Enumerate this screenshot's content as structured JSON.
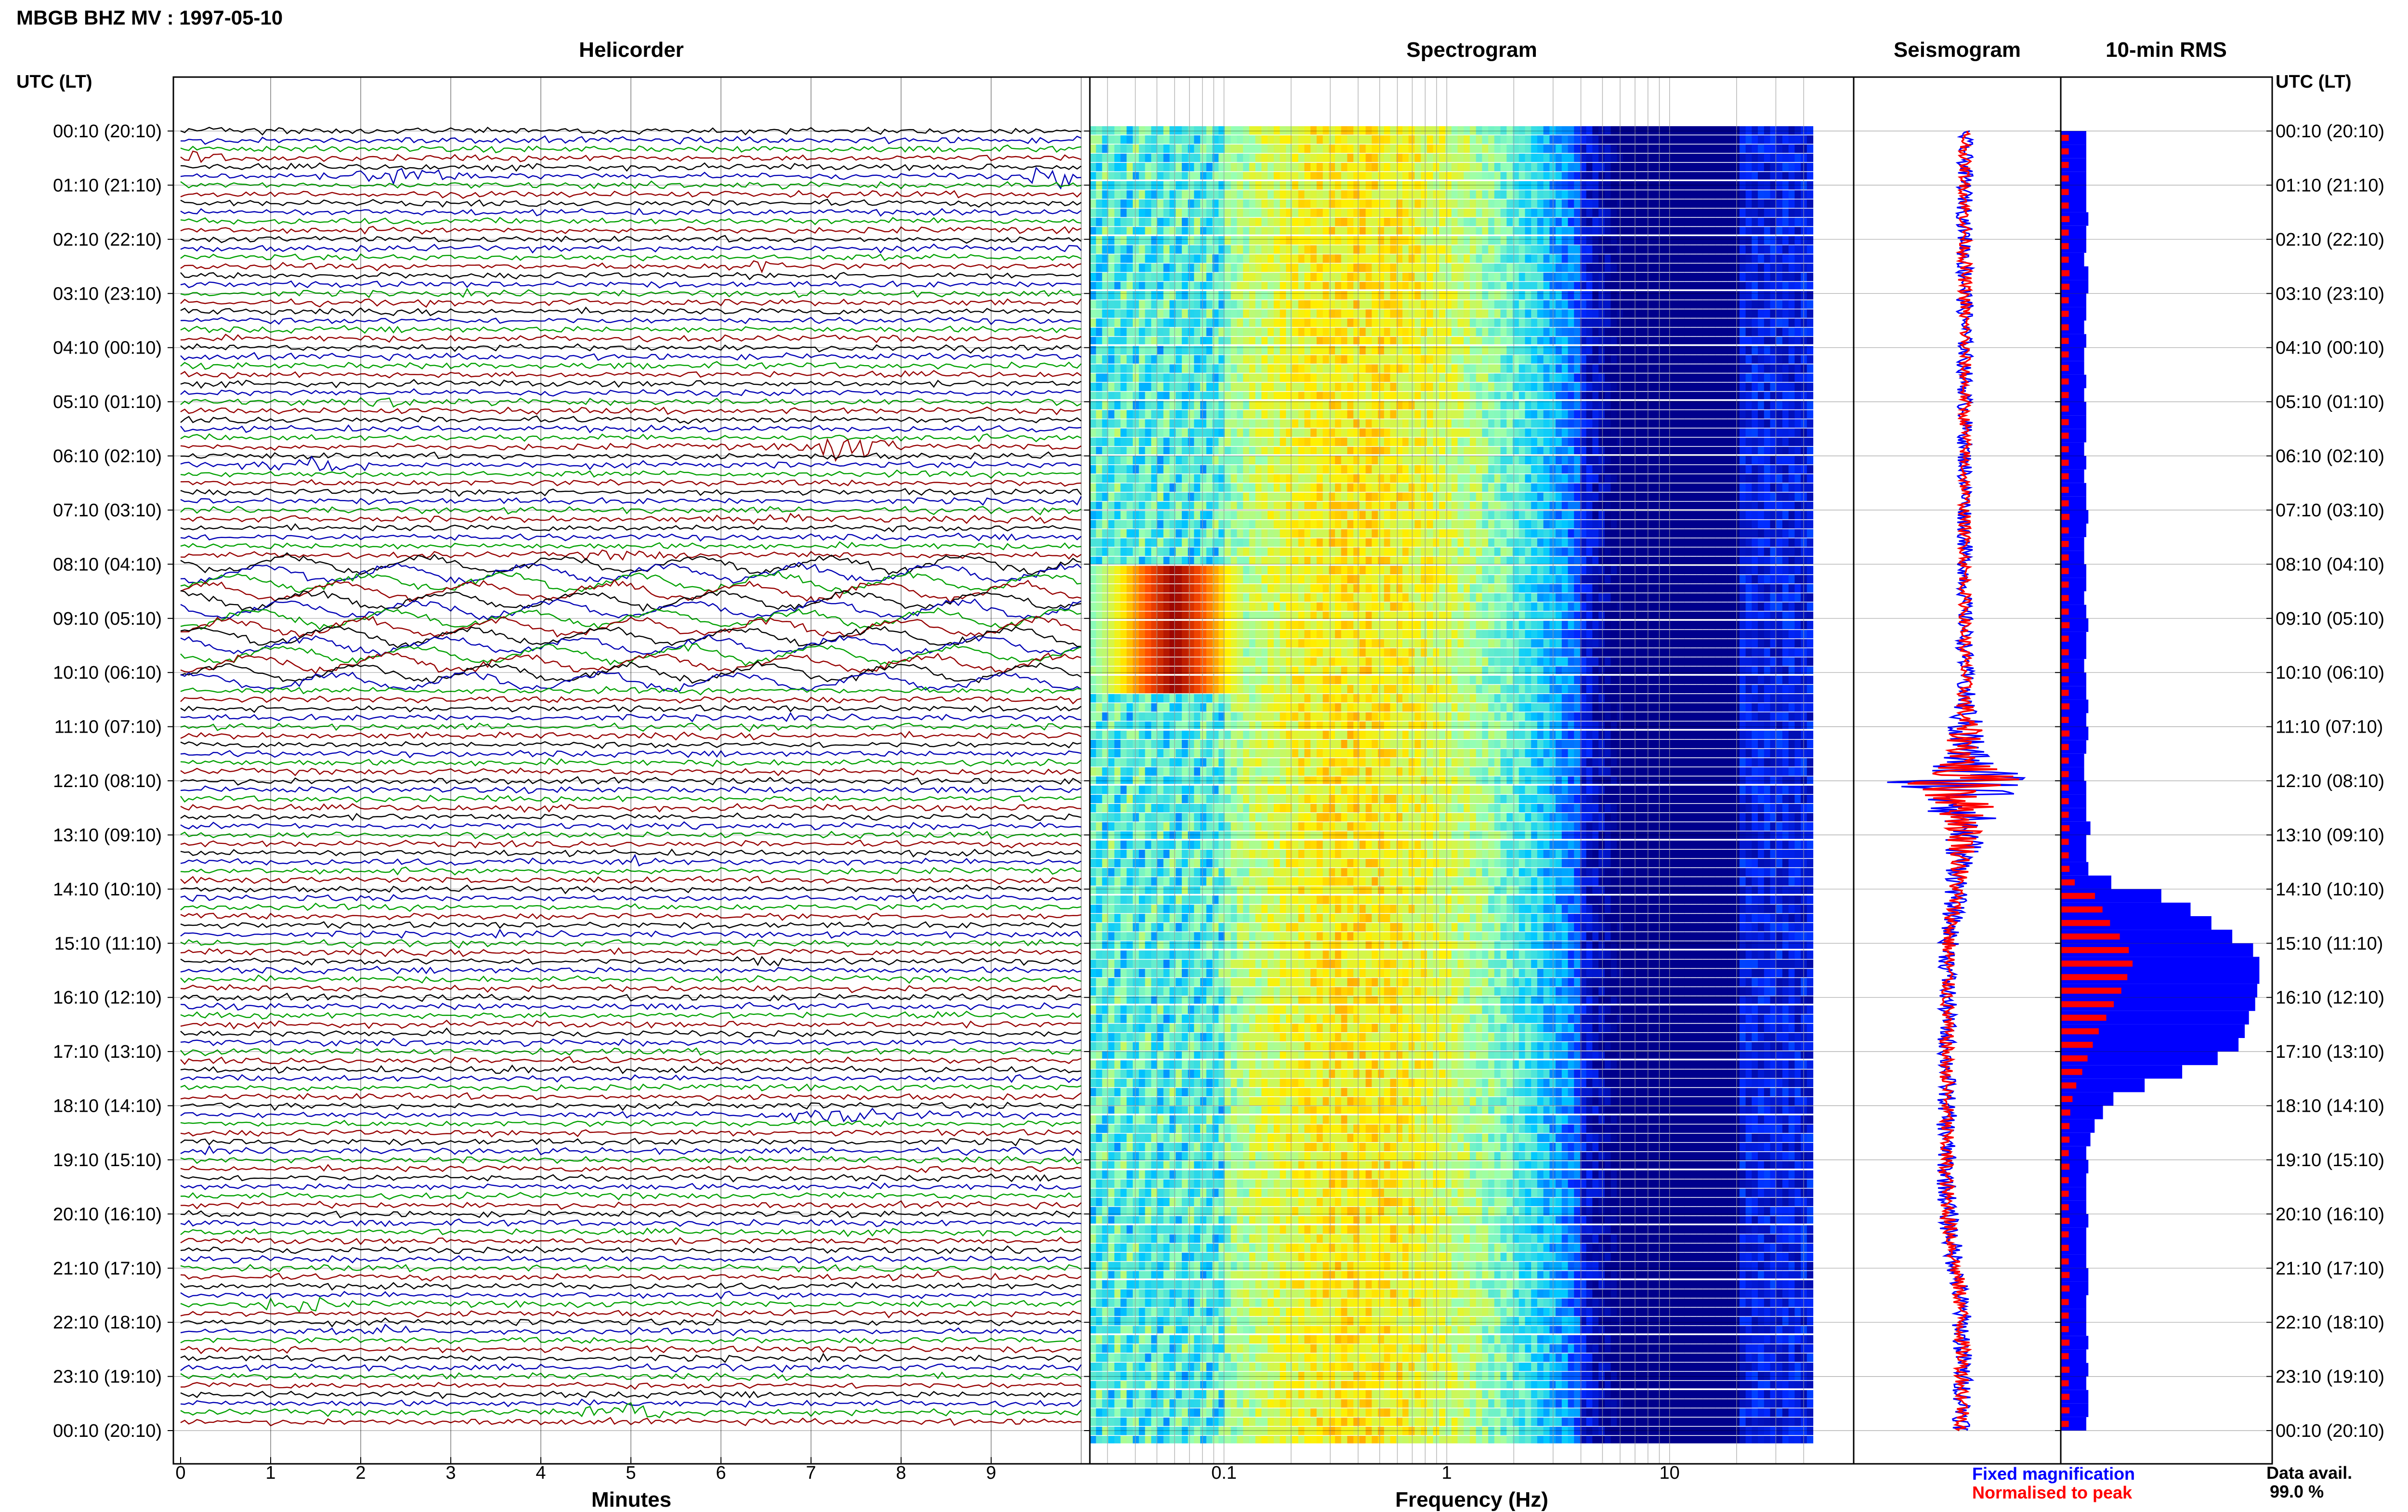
{
  "page": {
    "title": "MBGB BHZ MV : 1997-05-10",
    "time_axis_header": "UTC (LT)",
    "time_labels": [
      "00:10 (20:10)",
      "01:10 (21:10)",
      "02:10 (22:10)",
      "03:10 (23:10)",
      "04:10 (00:10)",
      "05:10 (01:10)",
      "06:10 (02:10)",
      "07:10 (03:10)",
      "08:10 (04:10)",
      "09:10 (05:10)",
      "10:10 (06:10)",
      "11:10 (07:10)",
      "12:10 (08:10)",
      "13:10 (09:10)",
      "14:10 (10:10)",
      "15:10 (11:10)",
      "16:10 (12:10)",
      "17:10 (13:10)",
      "18:10 (14:10)",
      "19:10 (15:10)",
      "20:10 (16:10)",
      "21:10 (17:10)",
      "22:10 (18:10)",
      "23:10 (19:10)",
      "00:10 (20:10)"
    ],
    "legend": {
      "fixed": "Fixed magnification",
      "normalised": "Normalised to peak",
      "fixed_color": "#0000ff",
      "normalised_color": "#ff0000"
    },
    "data_avail_label": "Data avail.",
    "data_avail_value": "99.0 %"
  },
  "chart_data": [
    {
      "type": "line",
      "title": "Helicorder",
      "xlabel": "Minutes",
      "xticks": [
        "0",
        "1",
        "2",
        "3",
        "4",
        "5",
        "6",
        "7",
        "8",
        "9"
      ],
      "xlim": [
        0,
        10
      ],
      "rows": 144,
      "row_colors": [
        "#000000",
        "#0000b4",
        "#00a000",
        "#960000"
      ],
      "events": [
        {
          "hour": 0.5,
          "minute": 0.2,
          "amp": 3,
          "dur": 0.5
        },
        {
          "hour": 0.8,
          "minute": 2.5,
          "amp": 4,
          "dur": 1.0
        },
        {
          "hour": 0.8,
          "minute": 9.7,
          "amp": 5,
          "dur": 0.5
        },
        {
          "hour": 2.5,
          "minute": 6.4,
          "amp": 3,
          "dur": 0.6
        },
        {
          "hour": 4.0,
          "minute": 8.7,
          "amp": 2.5,
          "dur": 0.5
        },
        {
          "hour": 5.0,
          "minute": 2.4,
          "amp": 2.5,
          "dur": 0.6
        },
        {
          "hour": 5.9,
          "minute": 7.4,
          "amp": 5,
          "dur": 0.9
        },
        {
          "hour": 6.1,
          "minute": 1.5,
          "amp": 3.5,
          "dur": 1.0
        },
        {
          "hour": 7.1,
          "minute": 6.5,
          "amp": 2,
          "dur": 1.2
        },
        {
          "hour": 7.9,
          "minute": 5.0,
          "amp": 2,
          "dur": 1.5
        },
        {
          "hour": 13.5,
          "minute": 5.1,
          "amp": 2.5,
          "dur": 0.6
        },
        {
          "hour": 15.3,
          "minute": 6.4,
          "amp": 3,
          "dur": 0.5
        },
        {
          "hour": 16.6,
          "minute": 2.8,
          "amp": 2,
          "dur": 0.5
        },
        {
          "hour": 17.4,
          "minute": 3.8,
          "amp": 2,
          "dur": 1.2
        },
        {
          "hour": 18.2,
          "minute": 7.3,
          "amp": 3.5,
          "dur": 1.4
        },
        {
          "hour": 21.1,
          "minute": 8.5,
          "amp": 2,
          "dur": 0.8
        },
        {
          "hour": 21.7,
          "minute": 1.3,
          "amp": 3.5,
          "dur": 0.8
        },
        {
          "hour": 22.2,
          "minute": 2.3,
          "amp": 2.5,
          "dur": 0.6
        },
        {
          "hour": 23.6,
          "minute": 4.9,
          "amp": 5,
          "dur": 0.7
        }
      ],
      "high_noise_hours": [
        8.0,
        10.3
      ]
    },
    {
      "type": "heatmap",
      "title": "Spectrogram",
      "xlabel": "Frequency (Hz)",
      "xscale": "log",
      "xticks": [
        "0.1",
        "1",
        "10"
      ],
      "xlim": [
        0.025,
        50
      ],
      "color_map": [
        "#00008c",
        "#0028ff",
        "#00c8ff",
        "#96ffb4",
        "#fff000",
        "#ff5000",
        "#960000"
      ],
      "peak_frequency_hz": 0.4,
      "storm_hours": [
        8.0,
        10.3
      ],
      "storm_frequency_hz": 0.06
    },
    {
      "type": "line",
      "title": "Seismogram",
      "series": [
        {
          "name": "Fixed magnification",
          "color": "#0000ff"
        },
        {
          "name": "Normalised to peak",
          "color": "#ff0000"
        }
      ],
      "envelope": [
        1,
        1,
        1,
        1,
        1,
        1,
        1.1,
        1,
        1,
        1.1,
        1.2,
        1.2,
        1.1,
        1.1,
        1.1,
        1,
        1,
        1.1,
        1,
        1,
        1,
        1,
        1,
        1,
        1,
        1,
        1,
        1,
        1,
        1,
        1,
        1,
        1,
        1,
        1,
        1,
        1,
        1.1,
        1.1,
        1.1,
        1.2,
        1.3,
        1.6,
        2.2,
        3.2,
        3.2,
        3.5,
        9,
        11,
        6,
        4.5,
        3.5,
        3,
        2,
        1.8,
        1.6,
        1.5,
        1.4,
        1.3,
        1.3,
        1.3,
        1.3,
        1.2,
        1.2,
        1.2,
        1.2,
        1.2,
        1.2,
        1.2,
        1.2,
        1.2,
        1.2,
        1.3,
        1.3,
        1.3,
        1.3,
        1.3,
        1.3,
        1.3,
        1.3,
        1.3,
        1.3,
        1.3,
        1.3,
        1.3,
        1.3,
        1.3,
        1.3,
        1.3,
        1.3,
        1.3,
        1.3,
        1.3,
        1.3,
        1.3,
        1.3
      ],
      "drift": [
        0,
        0,
        0,
        0,
        0,
        0,
        0,
        0,
        0,
        0,
        0,
        0,
        0,
        0,
        0,
        0,
        0,
        0,
        0,
        0,
        0,
        0,
        0,
        0,
        0,
        0,
        0,
        0,
        0,
        0,
        0,
        0,
        0,
        0,
        0,
        0,
        0,
        0,
        0,
        0,
        0,
        0,
        0,
        0,
        0,
        0,
        0,
        0,
        0,
        0,
        0,
        0,
        -0.2,
        -0.5,
        -1,
        -1.4,
        -1.8,
        -2.2,
        -2.6,
        -3,
        -3.2,
        -3.2,
        -3.3,
        -3.3,
        -3.4,
        -3.4,
        -3.5,
        -3.5,
        -3.5,
        -3.5,
        -3.5,
        -3.5,
        -3.5,
        -3.6,
        -3.6,
        -3.6,
        -3.6,
        -3.5,
        -3.4,
        -3.2,
        -3,
        -2.6,
        -2.2,
        -1.8,
        -1.4,
        -1,
        -0.8,
        -0.6,
        -0.5,
        -0.5,
        -0.5,
        -0.4,
        -0.4,
        -0.4,
        -0.4,
        -0.4
      ]
    },
    {
      "type": "bar",
      "title": "10-min RMS",
      "orientation": "horizontal",
      "series": [
        {
          "name": "Fixed magnification",
          "color": "#0000ff",
          "values": [
            12,
            12,
            12,
            12,
            12,
            12,
            13,
            12,
            12,
            11,
            13,
            13,
            12,
            12,
            11,
            12,
            11,
            11,
            12,
            11,
            12,
            12,
            12,
            11,
            12,
            11,
            12,
            12,
            13,
            12,
            11,
            11,
            12,
            12,
            11,
            12,
            13,
            12,
            12,
            11,
            12,
            12,
            13,
            12,
            13,
            12,
            11,
            11,
            12,
            12,
            12,
            14,
            12,
            12,
            13,
            24,
            48,
            62,
            72,
            82,
            92,
            95,
            95,
            94,
            93,
            90,
            88,
            85,
            75,
            58,
            40,
            25,
            20,
            16,
            14,
            12,
            13,
            12,
            12,
            12,
            13,
            12,
            12,
            12,
            13,
            13,
            12,
            12,
            12,
            13,
            12,
            13,
            12,
            13,
            13,
            12
          ]
        },
        {
          "name": "Normalised to peak",
          "color": "#ff0000",
          "values": [
            10,
            10,
            10,
            10,
            10,
            10,
            11,
            10,
            10,
            10,
            11,
            11,
            10,
            10,
            10,
            10,
            10,
            10,
            10,
            10,
            10,
            10,
            10,
            10,
            10,
            10,
            10,
            10,
            11,
            10,
            10,
            10,
            10,
            10,
            10,
            10,
            11,
            10,
            10,
            10,
            10,
            10,
            11,
            10,
            11,
            10,
            10,
            10,
            10,
            10,
            10,
            11,
            10,
            10,
            11,
            18,
            45,
            55,
            65,
            78,
            90,
            95,
            88,
            80,
            70,
            60,
            50,
            42,
            35,
            28,
            20,
            15,
            12,
            11,
            11,
            10,
            11,
            10,
            10,
            10,
            11,
            10,
            10,
            10,
            11,
            11,
            10,
            10,
            10,
            11,
            10,
            11,
            10,
            11,
            11,
            10
          ]
        }
      ]
    }
  ]
}
